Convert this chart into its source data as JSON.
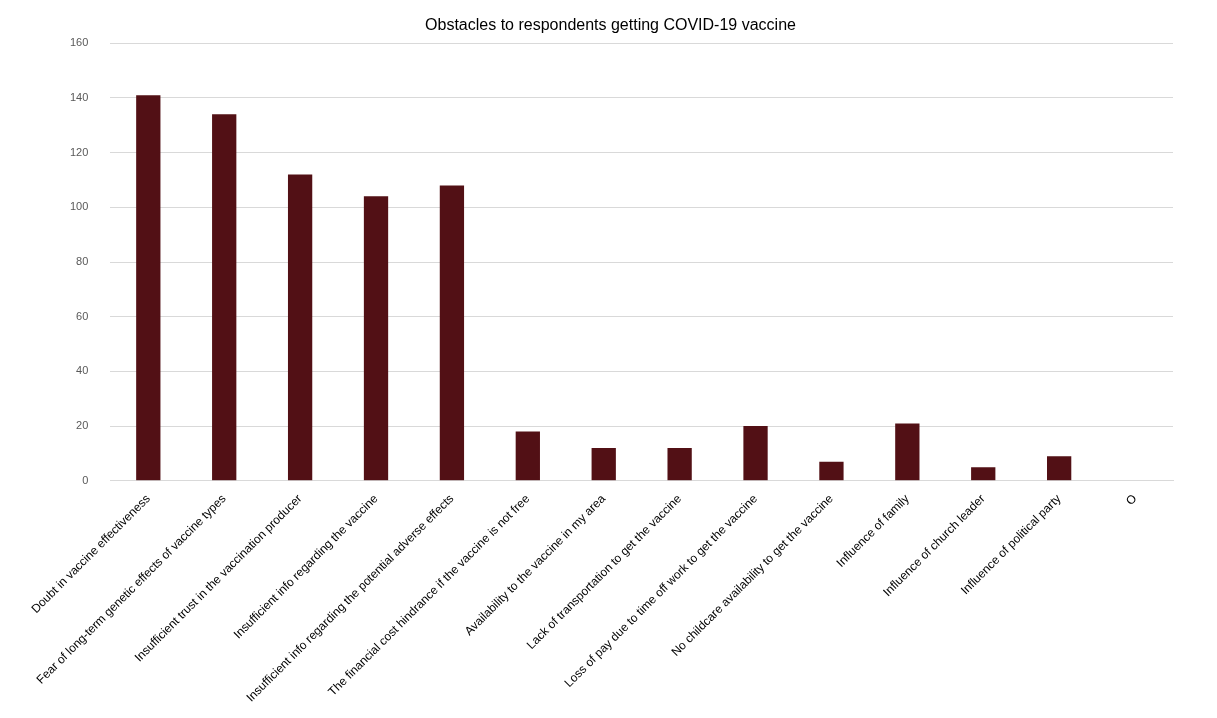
{
  "chart_data": {
    "type": "bar",
    "title": "Obstacles to respondents getting COVID-19 vaccine",
    "categories": [
      "Doubt in vaccine effectiveness",
      "Fear of long-term genetic effects of vaccine types",
      "Insufficient trust in the vaccination producer",
      "Insufficient info regarding the vaccine",
      "Insufficient info regarding the potential adverse effects",
      "The financial cost hindrance if the vaccine is not free",
      "Availability to the vaccine in my area",
      "Lack of transportation to get the vaccine",
      "Loss of pay due to time off work to get the vaccine",
      "No childcare availability to get the vaccine",
      "Influence of family",
      "Influence of church leader",
      "Influence of political party",
      "O"
    ],
    "values": [
      141,
      134,
      112,
      104,
      108,
      18,
      12,
      12,
      20,
      7,
      21,
      5,
      9,
      null
    ],
    "color": "#521015",
    "ylim": [
      0,
      160
    ],
    "yticks": [
      0,
      20,
      40,
      60,
      80,
      100,
      120,
      140,
      160
    ],
    "grid": "y"
  }
}
